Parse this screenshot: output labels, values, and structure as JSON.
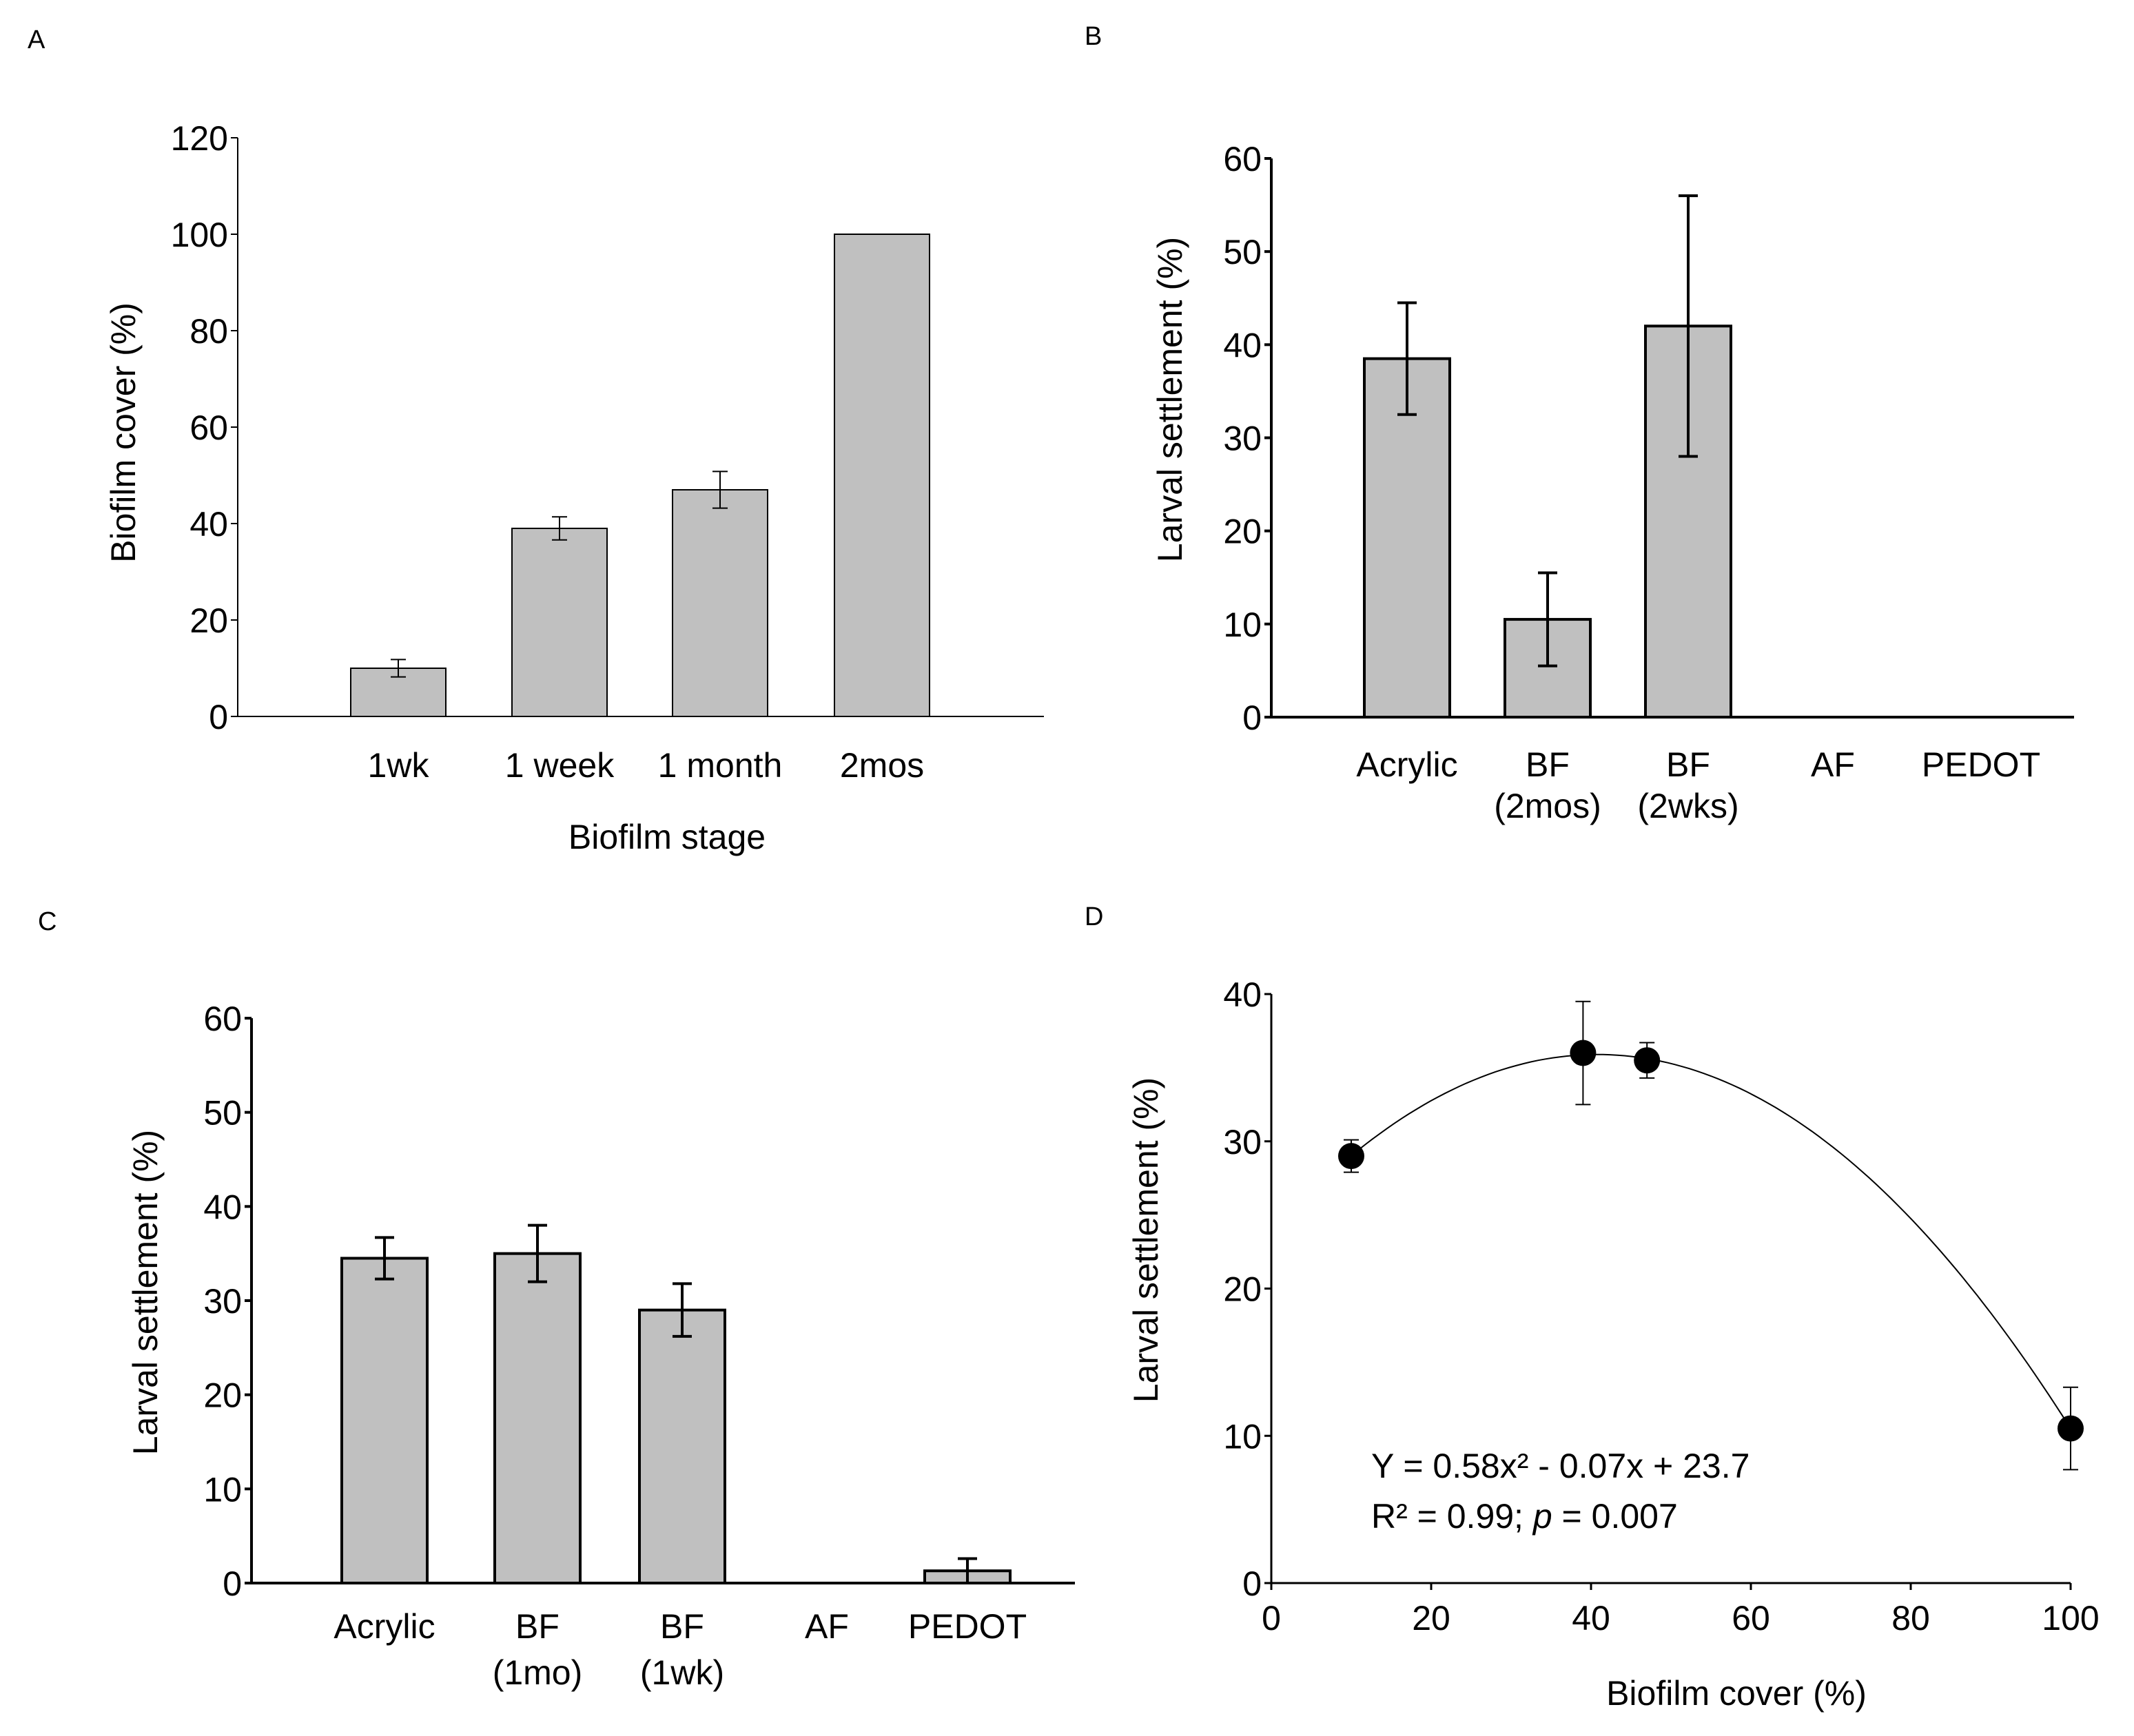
{
  "chart_data": [
    {
      "panel": "A",
      "type": "bar",
      "categories": [
        "1wk",
        "1 week",
        "1 month",
        "2mos"
      ],
      "values": [
        10,
        39,
        47,
        100
      ],
      "errors": [
        1.8,
        2.4,
        3.8,
        null
      ],
      "xlabel": "Biofilm stage",
      "ylabel": "Biofilm cover (%)",
      "ylim": [
        0,
        120
      ],
      "yticks": [
        0,
        20,
        40,
        60,
        80,
        100,
        120
      ],
      "bar_color": "#c0c0c0"
    },
    {
      "panel": "B",
      "type": "bar",
      "categories": [
        "Acrylic",
        "BF\n(2mos)",
        "BF\n(2wks)",
        "AF",
        "PEDOT"
      ],
      "values": [
        38.5,
        10.5,
        42,
        0,
        0
      ],
      "errors": [
        6,
        5,
        14,
        null,
        null
      ],
      "xlabel": "",
      "ylabel": "Larval settlement (%)",
      "ylim": [
        0,
        60
      ],
      "yticks": [
        0,
        10,
        20,
        30,
        40,
        50,
        60
      ],
      "bar_color": "#c0c0c0"
    },
    {
      "panel": "C",
      "type": "bar",
      "categories": [
        "Acrylic",
        "BF\n(1mo)",
        "BF\n(1wk)",
        "AF",
        "PEDOT"
      ],
      "values": [
        34.5,
        35,
        29,
        0,
        1.3
      ],
      "errors": [
        2.2,
        3,
        2.8,
        null,
        1.3
      ],
      "xlabel": "",
      "ylabel": "Larval settlement (%)",
      "ylim": [
        0,
        60
      ],
      "yticks": [
        0,
        10,
        20,
        30,
        40,
        50,
        60
      ],
      "bar_color": "#c0c0c0"
    },
    {
      "panel": "D",
      "type": "scatter",
      "x": [
        10,
        39,
        47,
        100
      ],
      "y": [
        29,
        36,
        35.5,
        10.5
      ],
      "errors": [
        1.1,
        3.5,
        1.2,
        2.8
      ],
      "fit": "quadratic",
      "equation": "Y = 0.58x² - 0.07x + 23.7",
      "stats": "R² = 0.99; p = 0.007",
      "xlabel": "Biofilm cover (%)",
      "ylabel": "Larval settlement (%)",
      "xlim": [
        0,
        100
      ],
      "ylim": [
        0,
        40
      ],
      "xticks": [
        0,
        20,
        40,
        60,
        80,
        100
      ],
      "yticks": [
        0,
        10,
        20,
        30,
        40
      ]
    }
  ]
}
